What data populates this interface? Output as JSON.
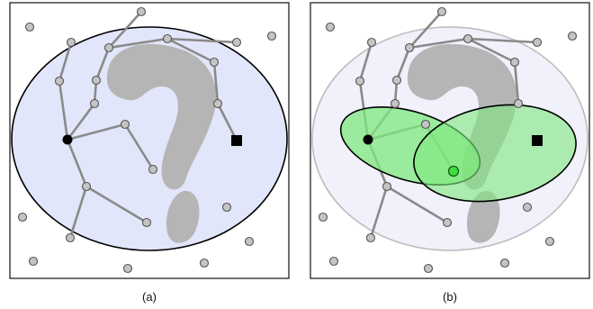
{
  "panels": [
    {
      "id": "a",
      "caption": "(a)"
    },
    {
      "id": "b",
      "caption": "(b)"
    }
  ],
  "colors": {
    "ellipse_fill_a": "#e2e6fa",
    "ellipse_fill_b": "#f0f1fa",
    "obstacle": "#b5b5b5",
    "subset_fill": "#7ee87e",
    "midpoint": "#3fdc3f"
  },
  "symbols": {
    "start": "filled-circle",
    "goal": "filled-square",
    "midpoint": "green-circle"
  }
}
